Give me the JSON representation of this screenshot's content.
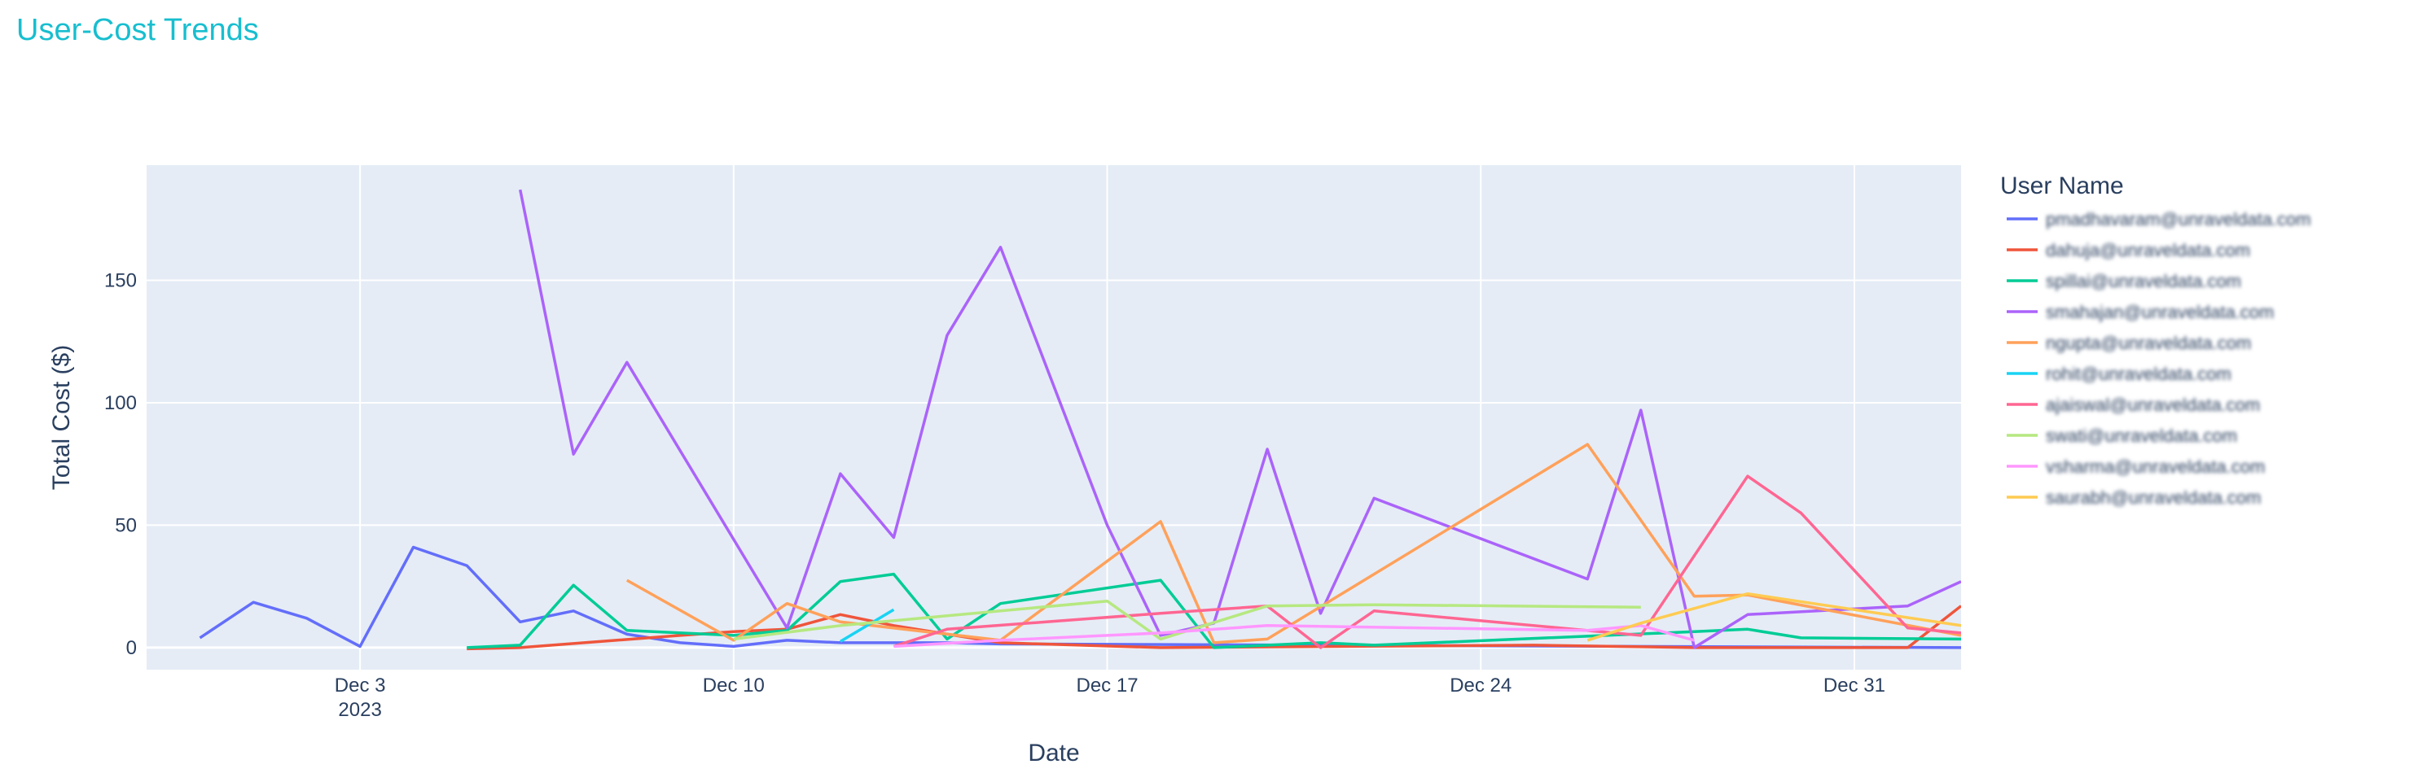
{
  "chart_data": {
    "type": "line",
    "title": "User-Cost Trends",
    "xlabel": "Date",
    "ylabel": "Total Cost ($)",
    "legend_title": "User Name",
    "legend_placement": "right",
    "grid": true,
    "x_range": [
      "2023-11-29",
      "2024-01-02"
    ],
    "ylim": [
      -9,
      197
    ],
    "x_ticks": [
      {
        "date": "2023-12-03",
        "label": "Dec 3",
        "sublabel": "2023"
      },
      {
        "date": "2023-12-10",
        "label": "Dec 10",
        "sublabel": ""
      },
      {
        "date": "2023-12-17",
        "label": "Dec 17",
        "sublabel": ""
      },
      {
        "date": "2023-12-24",
        "label": "Dec 24",
        "sublabel": ""
      },
      {
        "date": "2023-12-31",
        "label": "Dec 31",
        "sublabel": ""
      }
    ],
    "y_ticks": [
      0,
      50,
      100,
      150
    ],
    "series": [
      {
        "name": "pmadhavaram@unraveldata.com",
        "color": "#636efa",
        "points": [
          [
            "2023-11-30",
            4
          ],
          [
            "2023-12-01",
            18.5
          ],
          [
            "2023-12-02",
            12
          ],
          [
            "2023-12-03",
            0.5
          ],
          [
            "2023-12-04",
            41
          ],
          [
            "2023-12-05",
            33.5
          ],
          [
            "2023-12-06",
            10.5
          ],
          [
            "2023-12-07",
            15
          ],
          [
            "2023-12-08",
            5.5
          ],
          [
            "2023-12-09",
            2
          ],
          [
            "2023-12-10",
            0.5
          ],
          [
            "2023-12-11",
            3
          ],
          [
            "2023-12-12",
            2
          ],
          [
            "2023-12-14",
            2
          ],
          [
            "2023-12-15",
            1.5
          ],
          [
            "2024-01-02",
            0
          ]
        ]
      },
      {
        "name": "dahuja@unraveldata.com",
        "color": "#ef553b",
        "points": [
          [
            "2023-12-05",
            -0.5
          ],
          [
            "2023-12-06",
            0
          ],
          [
            "2023-12-09",
            5
          ],
          [
            "2023-12-10",
            6.5
          ],
          [
            "2023-12-11",
            7.5
          ],
          [
            "2023-12-12",
            13.5
          ],
          [
            "2023-12-13",
            9
          ],
          [
            "2023-12-15",
            2
          ],
          [
            "2023-12-18",
            0
          ],
          [
            "2023-12-25",
            1
          ],
          [
            "2023-12-28",
            0
          ],
          [
            "2023-12-31",
            0
          ],
          [
            "2024-01-01",
            0
          ],
          [
            "2024-01-02",
            17
          ]
        ]
      },
      {
        "name": "spillai@unraveldata.com",
        "color": "#00cc96",
        "points": [
          [
            "2023-12-05",
            0
          ],
          [
            "2023-12-06",
            1
          ],
          [
            "2023-12-07",
            25.5
          ],
          [
            "2023-12-08",
            7
          ],
          [
            "2023-12-10",
            5
          ],
          [
            "2023-12-11",
            7
          ],
          [
            "2023-12-12",
            27
          ],
          [
            "2023-12-13",
            30
          ],
          [
            "2023-12-14",
            3.5
          ],
          [
            "2023-12-15",
            18
          ],
          [
            "2023-12-18",
            27.5
          ],
          [
            "2023-12-19",
            0
          ],
          [
            "2023-12-21",
            2
          ],
          [
            "2023-12-22",
            1
          ],
          [
            "2023-12-28",
            6.5
          ],
          [
            "2023-12-29",
            7.5
          ],
          [
            "2023-12-30",
            4
          ],
          [
            "2024-01-02",
            3.5
          ]
        ]
      },
      {
        "name": "smahajan@unraveldata.com",
        "color": "#ab63fa",
        "points": [
          [
            "2023-12-06",
            187
          ],
          [
            "2023-12-07",
            79
          ],
          [
            "2023-12-08",
            116.5
          ],
          [
            "2023-12-11",
            8
          ],
          [
            "2023-12-12",
            71
          ],
          [
            "2023-12-13",
            45
          ],
          [
            "2023-12-14",
            127.5
          ],
          [
            "2023-12-15",
            163.5
          ],
          [
            "2023-12-17",
            50
          ],
          [
            "2023-12-18",
            5
          ],
          [
            "2023-12-19",
            10
          ],
          [
            "2023-12-20",
            81
          ],
          [
            "2023-12-21",
            14
          ],
          [
            "2023-12-22",
            61
          ],
          [
            "2023-12-26",
            28
          ],
          [
            "2023-12-27",
            97
          ],
          [
            "2023-12-28",
            0
          ],
          [
            "2023-12-29",
            13.5
          ],
          [
            "2024-01-01",
            17
          ],
          [
            "2024-01-02",
            27
          ]
        ]
      },
      {
        "name": "ngupta@unraveldata.com",
        "color": "#ffa15a",
        "points": [
          [
            "2023-12-08",
            27.5
          ],
          [
            "2023-12-10",
            3
          ],
          [
            "2023-12-11",
            18
          ],
          [
            "2023-12-12",
            10.5
          ],
          [
            "2023-12-15",
            3
          ],
          [
            "2023-12-18",
            51.5
          ],
          [
            "2023-12-19",
            2
          ],
          [
            "2023-12-20",
            3.5
          ],
          [
            "2023-12-26",
            83
          ],
          [
            "2023-12-28",
            21
          ],
          [
            "2023-12-29",
            21.5
          ],
          [
            "2024-01-02",
            5
          ]
        ]
      },
      {
        "name": "rohit@unraveldata.com",
        "color": "#19d3f3",
        "points": [
          [
            "2023-12-12",
            2.5
          ],
          [
            "2023-12-13",
            15.5
          ]
        ]
      },
      {
        "name": "ajaiswal@unraveldata.com",
        "color": "#ff6692",
        "points": [
          [
            "2023-12-13",
            0.5
          ],
          [
            "2023-12-14",
            7.5
          ],
          [
            "2023-12-18",
            14
          ],
          [
            "2023-12-20",
            17
          ],
          [
            "2023-12-21",
            0
          ],
          [
            "2023-12-22",
            15
          ],
          [
            "2023-12-27",
            5
          ],
          [
            "2023-12-29",
            70
          ],
          [
            "2023-12-30",
            55
          ],
          [
            "2024-01-01",
            8
          ],
          [
            "2024-01-02",
            6
          ]
        ]
      },
      {
        "name": "swati@unraveldata.com",
        "color": "#b6e880",
        "points": [
          [
            "2023-12-10",
            3.5
          ],
          [
            "2023-12-12",
            9
          ],
          [
            "2023-12-14",
            13
          ],
          [
            "2023-12-17",
            19
          ],
          [
            "2023-12-18",
            3.5
          ],
          [
            "2023-12-20",
            17
          ],
          [
            "2023-12-22",
            17.5
          ],
          [
            "2023-12-27",
            16.5
          ]
        ]
      },
      {
        "name": "vsharma@unraveldata.com",
        "color": "#ff97ff",
        "points": [
          [
            "2023-12-13",
            0.5
          ],
          [
            "2023-12-15",
            3
          ],
          [
            "2023-12-18",
            6
          ],
          [
            "2023-12-20",
            9
          ],
          [
            "2023-12-26",
            7
          ],
          [
            "2023-12-27",
            9
          ],
          [
            "2023-12-28",
            3
          ]
        ]
      },
      {
        "name": "saurabh@unraveldata.com",
        "color": "#fecb52",
        "points": [
          [
            "2023-12-26",
            3
          ],
          [
            "2023-12-27",
            10
          ],
          [
            "2023-12-29",
            22
          ],
          [
            "2024-01-02",
            9
          ]
        ]
      }
    ]
  }
}
